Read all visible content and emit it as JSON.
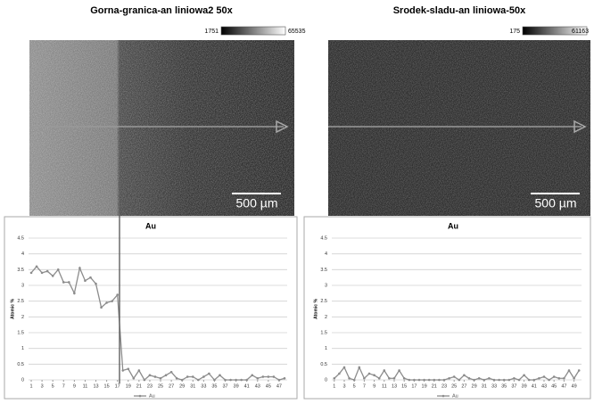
{
  "panels": [
    {
      "title": "Gorna-granica-an liniowa2 50x",
      "colorbar": [
        "1751",
        "65535"
      ],
      "scalebar": "500 µm"
    },
    {
      "title": "Srodek-sladu-an liniowa-50x",
      "colorbar": [
        "175",
        "61163"
      ],
      "scalebar": "500 µm"
    }
  ],
  "chart_data": [
    {
      "type": "line",
      "title": "Au",
      "y_label": "Atomic %",
      "x": [
        1,
        2,
        3,
        4,
        5,
        6,
        7,
        8,
        9,
        10,
        11,
        12,
        13,
        14,
        15,
        16,
        17,
        18,
        19,
        20,
        21,
        22,
        23,
        24,
        25,
        26,
        27,
        28,
        29,
        30,
        31,
        32,
        33,
        34,
        35,
        36,
        37,
        38,
        39,
        40,
        41,
        42,
        43,
        44,
        45,
        46,
        47,
        48
      ],
      "series": [
        {
          "name": "Au",
          "color": "#8c8c8c",
          "values": [
            3.4,
            3.6,
            3.4,
            3.45,
            3.3,
            3.5,
            3.1,
            3.1,
            2.75,
            3.55,
            3.15,
            3.25,
            3.05,
            2.3,
            2.45,
            2.5,
            2.7,
            0.3,
            0.35,
            0.05,
            0.3,
            0,
            0.15,
            0.1,
            0.05,
            0.15,
            0.25,
            0.05,
            0,
            0.1,
            0.1,
            0,
            0.1,
            0.2,
            0,
            0.15,
            0,
            0,
            0,
            0,
            0,
            0.15,
            0.05,
            0.1,
            0.1,
            0.1,
            0,
            0.05
          ]
        }
      ],
      "xlim": [
        0.5,
        48.5
      ],
      "xticks": [
        1,
        3,
        5,
        7,
        9,
        11,
        13,
        15,
        17,
        19,
        21,
        23,
        25,
        27,
        29,
        31,
        33,
        35,
        37,
        39,
        41,
        43,
        45,
        47
      ],
      "ylim": [
        0,
        4.5
      ],
      "yticks": [
        0,
        0.5,
        1,
        1.5,
        2,
        2.5,
        3,
        3.5,
        4,
        4.5
      ],
      "grid": true,
      "legend": "bottom"
    },
    {
      "type": "line",
      "title": "Au",
      "y_label": "Atomic %",
      "x": [
        1,
        2,
        3,
        4,
        5,
        6,
        7,
        8,
        9,
        10,
        11,
        12,
        13,
        14,
        15,
        16,
        17,
        18,
        19,
        20,
        21,
        22,
        23,
        24,
        25,
        26,
        27,
        28,
        29,
        30,
        31,
        32,
        33,
        34,
        35,
        36,
        37,
        38,
        39,
        40,
        41,
        42,
        43,
        44,
        45,
        46,
        47,
        48,
        49,
        50
      ],
      "series": [
        {
          "name": "Au",
          "color": "#8c8c8c",
          "values": [
            0.05,
            0.2,
            0.4,
            0.05,
            0,
            0.4,
            0.05,
            0.2,
            0.15,
            0.05,
            0.3,
            0.05,
            0.05,
            0.3,
            0.05,
            0,
            0,
            0,
            0,
            0,
            0,
            0,
            0,
            0.05,
            0.1,
            0,
            0.15,
            0.05,
            0,
            0.05,
            0,
            0.05,
            0,
            0,
            0,
            0,
            0.05,
            0,
            0.15,
            0,
            0,
            0.05,
            0.1,
            0,
            0.1,
            0.05,
            0.05,
            0.3,
            0.05,
            0.3
          ]
        }
      ],
      "xlim": [
        0.5,
        50.5
      ],
      "xticks": [
        1,
        3,
        5,
        7,
        9,
        11,
        13,
        15,
        17,
        19,
        21,
        23,
        25,
        27,
        29,
        31,
        33,
        35,
        37,
        39,
        41,
        43,
        45,
        47,
        49
      ],
      "ylim": [
        0,
        4.5
      ],
      "yticks": [
        0,
        0.5,
        1,
        1.5,
        2,
        2.5,
        3,
        3.5,
        4,
        4.5
      ],
      "grid": true,
      "legend": "bottom"
    }
  ]
}
